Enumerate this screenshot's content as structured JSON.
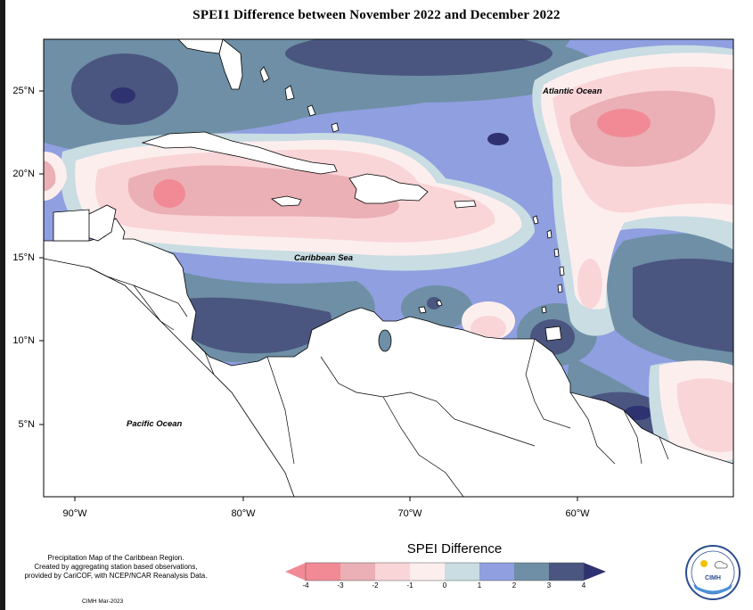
{
  "title": "SPEI1 Difference between November 2022 and December 2022",
  "map": {
    "lat_labels": [
      "25°N",
      "20°N",
      "15°N",
      "10°N",
      "5°N"
    ],
    "lon_labels": [
      "90°W",
      "80°W",
      "70°W",
      "60°W"
    ],
    "places": {
      "atlantic": "Atlantic Ocean",
      "caribbean": "Caribbean Sea",
      "pacific": "Pacific Ocean"
    }
  },
  "legend": {
    "title": "SPEI Difference",
    "ticks": [
      "-4",
      "-3",
      "-2",
      "-1",
      "0",
      "1",
      "2",
      "3",
      "4"
    ],
    "colors": [
      "#f28a95",
      "#eab0b5",
      "#f9d5d8",
      "#fdeeee",
      "#c9dde3",
      "#8f9fe0",
      "#6e8fa5",
      "#4a5680",
      "#2e3270"
    ]
  },
  "info": {
    "line1": "Precipitation Map of the Caribbean Region.",
    "line2": "Created by aggregating station based observations,",
    "line3": "provided by CariCOF, with NCEP/NCAR Reanalysis Data."
  },
  "credit": "CIMH Mar-2023",
  "logo": {
    "text": "CIMH"
  }
}
